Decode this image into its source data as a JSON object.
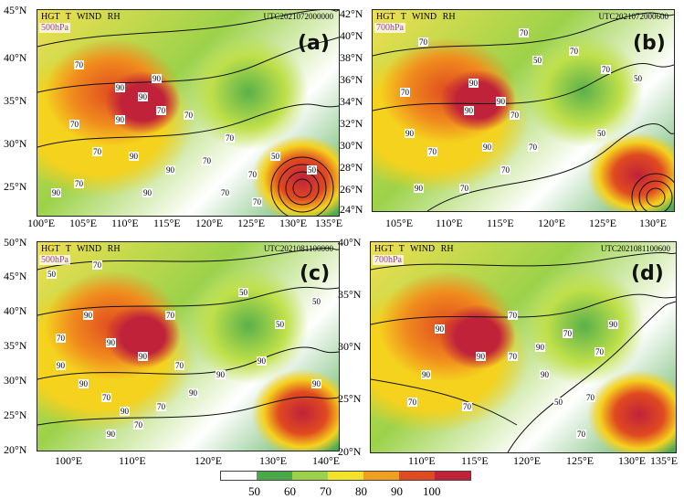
{
  "panels": [
    {
      "id": "a",
      "letter": "(a)",
      "header": "HGT  T  WIND  RH",
      "level": "500hPa",
      "time": "UTC2021072000000",
      "xticks": [
        "100°E",
        "105°E",
        "110°E",
        "115°E",
        "120°E",
        "125°E",
        "130°E",
        "135°E"
      ],
      "yticks": [
        "45°N",
        "40°N",
        "35°N",
        "30°N",
        "25°N"
      ],
      "contour_labels": [
        "70",
        "90",
        "90",
        "90",
        "70",
        "70",
        "90",
        "70",
        "70",
        "90",
        "50",
        "70",
        "90",
        "70",
        "50",
        "70",
        "70",
        "70",
        "90",
        "90",
        "70"
      ]
    },
    {
      "id": "b",
      "letter": "(b)",
      "header": "HGT  T  WIND  RH",
      "level": "700hPa",
      "time": "UTC2021072000600",
      "xticks": [
        "105°E",
        "110°E",
        "115°E",
        "120°E",
        "125°E",
        "130°E"
      ],
      "yticks": [
        "42°N",
        "40°N",
        "38°N",
        "36°N",
        "34°N",
        "32°N",
        "30°N",
        "28°N",
        "26°N",
        "24°N"
      ],
      "contour_labels": [
        "70",
        "70",
        "90",
        "70",
        "90",
        "90",
        "70",
        "90",
        "70",
        "50",
        "70",
        "70",
        "50",
        "50",
        "70",
        "70",
        "70",
        "90",
        "90"
      ]
    },
    {
      "id": "c",
      "letter": "(c)",
      "header": "HGT  T  WIND  RH",
      "level": "500hPa",
      "time": "UTC2021081100000",
      "xticks": [
        "100°E",
        "110°E",
        "120°E",
        "130°E",
        "140°E"
      ],
      "yticks": [
        "50°N",
        "45°N",
        "40°N",
        "35°N",
        "30°N",
        "25°N",
        "20°N"
      ],
      "contour_labels": [
        "50",
        "70",
        "90",
        "70",
        "50",
        "50",
        "70",
        "90",
        "90",
        "90",
        "70",
        "90",
        "90",
        "90",
        "90",
        "70",
        "90",
        "70",
        "90",
        "70",
        "50",
        "90"
      ]
    },
    {
      "id": "d",
      "letter": "(d)",
      "header": "HGT  T  WIND  RH",
      "level": "700hPa",
      "time": "UTC2021081100600",
      "xticks": [
        "110°E",
        "115°E",
        "120°E",
        "125°E",
        "130°E",
        "135°E"
      ],
      "yticks": [
        "40°N",
        "35°N",
        "30°N",
        "25°N",
        "20°N"
      ],
      "contour_labels": [
        "70",
        "90",
        "90",
        "70",
        "90",
        "90",
        "90",
        "70",
        "70",
        "90",
        "70",
        "70",
        "70",
        "70",
        "50"
      ]
    }
  ],
  "colorbar": {
    "colors": [
      "#ffffff",
      "#4aa84a",
      "#9cd24a",
      "#f5e32a",
      "#f0a01e",
      "#e04a20",
      "#c0223a"
    ],
    "labels": [
      "50",
      "60",
      "70",
      "80",
      "90",
      "100"
    ]
  }
}
